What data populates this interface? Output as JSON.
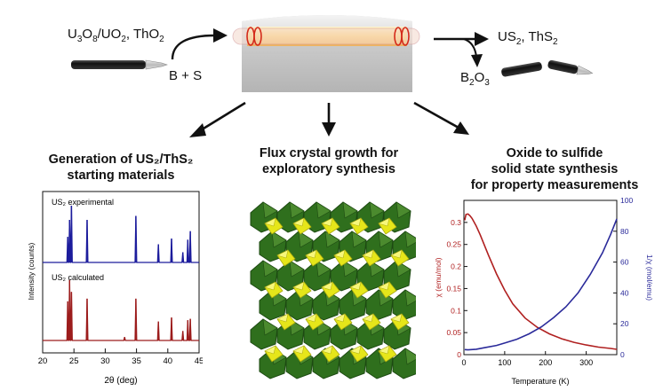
{
  "top": {
    "reactants": {
      "parts": [
        "U",
        "3",
        "O",
        "8",
        "/UO",
        "2",
        ", ThO",
        "2"
      ]
    },
    "reagent": "B + S",
    "products": {
      "parts": [
        "US",
        "2",
        ", ThS",
        "2"
      ]
    },
    "byproduct": {
      "parts": [
        "B",
        "2",
        "O",
        "3"
      ]
    }
  },
  "branches": {
    "left": {
      "line1": "Generation of US₂/ThS₂",
      "line2": "starting materials"
    },
    "middle": {
      "line1": "Flux crystal growth for",
      "line2": "exploratory synthesis"
    },
    "right": {
      "line1": "Oxide to sulfide",
      "line2": "solid state synthesis",
      "line3": "for property measurements"
    }
  },
  "colors": {
    "experimental": "#1c1c9c",
    "calculated": "#9c1c1c",
    "chi": "#b02020",
    "inv_chi": "#2a2a9a",
    "polyhedra_green": "#2f6f1d",
    "polyhedra_yellow": "#e6e61a"
  },
  "chart_data": [
    {
      "type": "line",
      "title": "",
      "xlabel": "2θ (deg)",
      "ylabel": "Intensity (counts)",
      "xlim": [
        20,
        45
      ],
      "xticks": [
        "20",
        "25",
        "30",
        "35",
        "40",
        "45"
      ],
      "series": [
        {
          "name": "US₂ experimental",
          "peaks": [
            [
              24.0,
              0.45
            ],
            [
              24.3,
              0.75
            ],
            [
              24.6,
              1.0
            ],
            [
              27.1,
              0.75
            ],
            [
              34.9,
              0.82
            ],
            [
              38.5,
              0.32
            ],
            [
              40.6,
              0.42
            ],
            [
              42.4,
              0.18
            ],
            [
              43.2,
              0.4
            ],
            [
              43.6,
              0.55
            ]
          ]
        },
        {
          "name": "US₂ calculated",
          "peaks": [
            [
              24.0,
              0.58
            ],
            [
              24.3,
              0.9
            ],
            [
              24.6,
              0.72
            ],
            [
              27.1,
              0.62
            ],
            [
              33.1,
              0.05
            ],
            [
              34.9,
              0.62
            ],
            [
              38.5,
              0.28
            ],
            [
              40.6,
              0.34
            ],
            [
              42.4,
              0.14
            ],
            [
              43.2,
              0.3
            ],
            [
              43.6,
              0.32
            ]
          ]
        }
      ]
    },
    {
      "type": "line",
      "title": "",
      "xlabel": "Temperature (K)",
      "ylabel": "χ (emu/mol)",
      "y2label": "1/χ (mol/emu)",
      "xlim": [
        0,
        375
      ],
      "ylim": [
        0,
        0.35
      ],
      "y2lim": [
        0,
        100
      ],
      "xticks": [
        "0",
        "100",
        "200",
        "300"
      ],
      "yticks": [
        "0",
        "0.05",
        "0.1",
        "0.15",
        "0.2",
        "0.25",
        "0.3"
      ],
      "y2ticks": [
        "0",
        "20",
        "40",
        "60",
        "80",
        "100"
      ],
      "series": [
        {
          "axis": "left",
          "x": [
            2,
            5,
            10,
            15,
            20,
            30,
            40,
            60,
            80,
            100,
            120,
            150,
            180,
            210,
            240,
            270,
            300,
            330,
            360,
            375
          ],
          "y": [
            0.305,
            0.318,
            0.319,
            0.315,
            0.309,
            0.292,
            0.272,
            0.226,
            0.183,
            0.146,
            0.115,
            0.083,
            0.062,
            0.047,
            0.036,
            0.028,
            0.022,
            0.017,
            0.014,
            0.012
          ]
        },
        {
          "axis": "right",
          "x": [
            2,
            10,
            30,
            50,
            80,
            100,
            130,
            160,
            190,
            220,
            250,
            280,
            310,
            340,
            360,
            375
          ],
          "y": [
            3.3,
            3.1,
            3.5,
            4.5,
            6,
            7.5,
            10,
            13.5,
            18,
            24,
            31,
            40,
            52,
            66,
            78,
            88
          ]
        }
      ]
    }
  ]
}
